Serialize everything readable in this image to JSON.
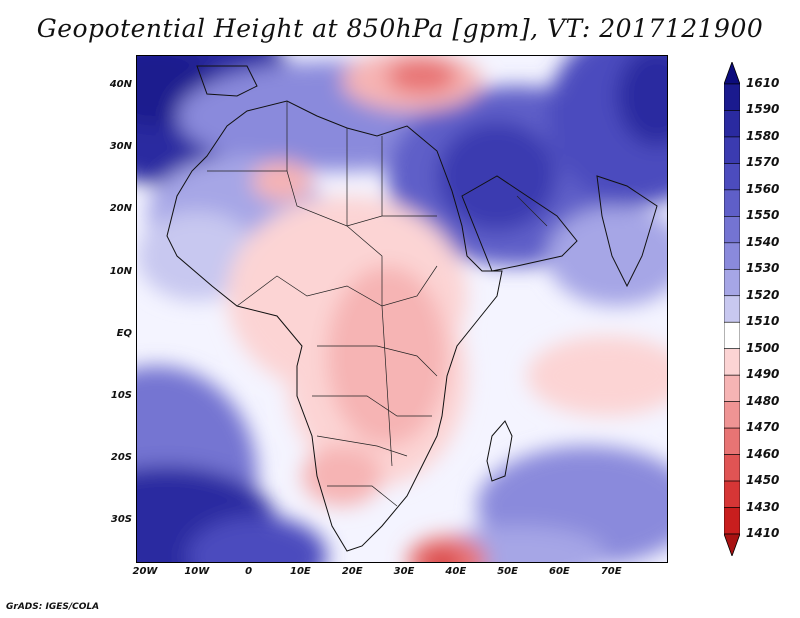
{
  "title": "Geopotential Height at 850hPa [gpm], VT: 2017121900",
  "credit": "GrADS: IGES/COLA",
  "map": {
    "variable": "Geopotential Height at 850hPa",
    "units": "gpm",
    "valid_time": "2017121900",
    "lat_ticks": [
      "40N",
      "30N",
      "20N",
      "10N",
      "EQ",
      "10S",
      "20S",
      "30S"
    ],
    "lon_ticks": [
      "20W",
      "10W",
      "0",
      "10E",
      "20E",
      "30E",
      "40E",
      "50E",
      "60E",
      "70E"
    ]
  },
  "colorbar": {
    "levels": [
      "1610",
      "1590",
      "1580",
      "1570",
      "1560",
      "1550",
      "1540",
      "1530",
      "1520",
      "1510",
      "1500",
      "1490",
      "1480",
      "1470",
      "1460",
      "1450",
      "1430",
      "1410"
    ],
    "colors": [
      "#0c0c7c",
      "#1a1a8e",
      "#2a2aa0",
      "#3b3bb0",
      "#4c4cbe",
      "#5f5fc8",
      "#7474d2",
      "#8a8adc",
      "#a6a6e6",
      "#c8c8f0",
      "#ffffff",
      "#fcd4d4",
      "#f6b4b4",
      "#ef9494",
      "#e87474",
      "#e05454",
      "#d63636",
      "#c81e1e",
      "#a81212"
    ]
  }
}
